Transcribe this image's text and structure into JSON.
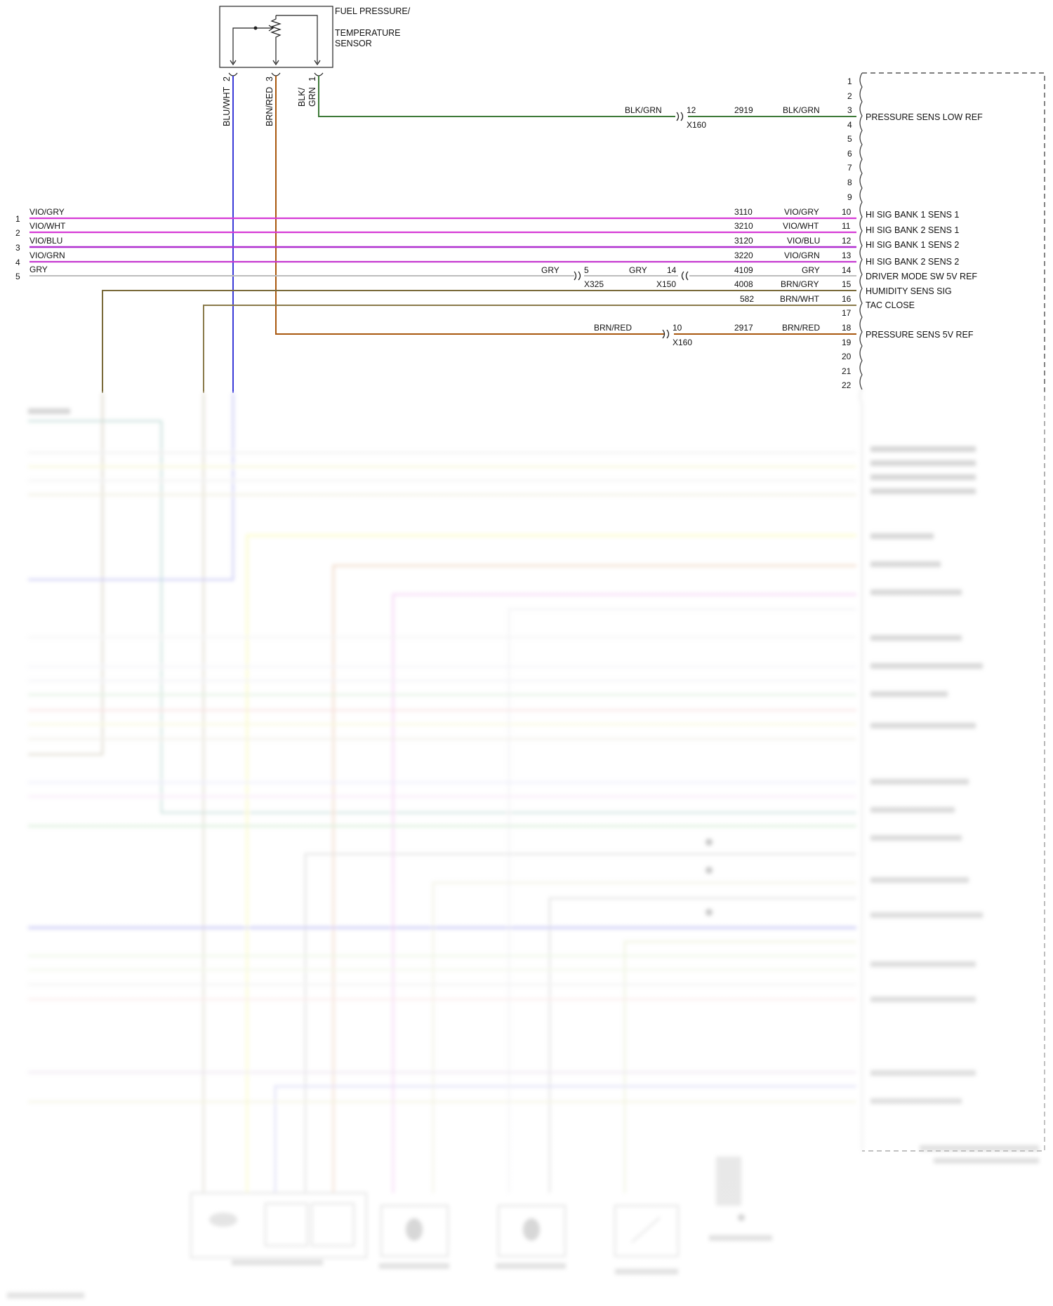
{
  "colors": {
    "VIO_GRY": "#d63bd6",
    "VIO_WHT": "#d63bd6",
    "VIO_BLU": "#b02fd0",
    "VIO_GRN": "#c63ad0",
    "GRY": "#bdbdbd",
    "BRN_GRY": "#7a6a3a",
    "BRN_WHT": "#8a7a4a",
    "BRN_RED": "#a8570e",
    "BLK_GRN": "#3d7a38",
    "BLU_WHT": "#3a3ad8"
  },
  "sensor": {
    "title_line1": "FUEL PRESSURE/",
    "title_line2": "TEMPERATURE",
    "title_line3": "SENSOR",
    "pins": [
      {
        "num": "2",
        "wire": "BLU/WHT"
      },
      {
        "num": "3",
        "wire": "BRN/RED"
      },
      {
        "num": "1",
        "wire_line1": "BLK/",
        "wire_line2": "GRN"
      }
    ]
  },
  "pcm_pins": [
    "1",
    "2",
    "3",
    "4",
    "5",
    "6",
    "7",
    "8",
    "9",
    "10",
    "11",
    "12",
    "13",
    "14",
    "15",
    "16",
    "17",
    "18",
    "19",
    "20",
    "21",
    "22"
  ],
  "circuits": [
    {
      "pin": "3",
      "circuit": "2919",
      "wire": "BLK/GRN",
      "label": "PRESSURE SENS LOW REF",
      "connector": {
        "pin": "12",
        "name": "X160",
        "wire_left": "BLK/GRN"
      }
    },
    {
      "pin": "10",
      "circuit": "3110",
      "wire": "VIO/GRY",
      "label": "HI SIG BANK 1 SENS 1"
    },
    {
      "pin": "11",
      "circuit": "3210",
      "wire": "VIO/WHT",
      "label": "HI SIG BANK 2 SENS 1"
    },
    {
      "pin": "12",
      "circuit": "3120",
      "wire": "VIO/BLU",
      "label": "HI SIG BANK 1 SENS 2"
    },
    {
      "pin": "13",
      "circuit": "3220",
      "wire": "VIO/GRN",
      "label": "HI SIG BANK 2 SENS 2"
    },
    {
      "pin": "14",
      "circuit": "4109",
      "wire": "GRY",
      "label": "DRIVER MODE SW 5V REF"
    },
    {
      "pin": "15",
      "circuit": "4008",
      "wire": "BRN/GRY",
      "label": "HUMIDITY SENS SIG"
    },
    {
      "pin": "16",
      "circuit": "582",
      "wire": "BRN/WHT",
      "label": "TAC CLOSE"
    },
    {
      "pin": "18",
      "circuit": "2917",
      "wire": "BRN/RED",
      "label": "PRESSURE SENS 5V REF",
      "connector": {
        "pin": "10",
        "name": "X160",
        "wire_left": "BRN/RED"
      }
    }
  ],
  "gry_connectors": {
    "x325": {
      "wire_left": "GRY",
      "pin": "5",
      "name": "X325"
    },
    "x150": {
      "wire_left": "GRY",
      "pin": "14",
      "name": "X150"
    }
  },
  "left_wires": [
    {
      "num": "1",
      "wire": "VIO/GRY"
    },
    {
      "num": "2",
      "wire": "VIO/WHT"
    },
    {
      "num": "3",
      "wire": "VIO/BLU"
    },
    {
      "num": "4",
      "wire": "VIO/GRN"
    },
    {
      "num": "5",
      "wire": "GRY"
    }
  ]
}
